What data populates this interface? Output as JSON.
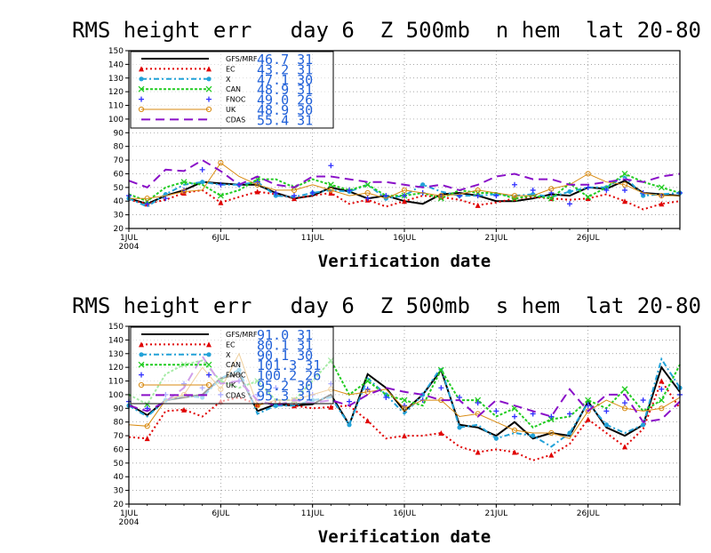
{
  "chart_data": [
    {
      "type": "line",
      "title": "RMS height err   day 6  Z 500mb  n hem  lat 20-80",
      "xlabel": "Verification date",
      "ylabel": "",
      "ylim": [
        20,
        150
      ],
      "y_ticks": [
        20,
        30,
        40,
        50,
        60,
        70,
        80,
        90,
        100,
        110,
        120,
        130,
        140,
        150
      ],
      "x_ticks": [
        {
          "day": 1,
          "label": "1JUL",
          "sub": "2004"
        },
        {
          "day": 6,
          "label": "6JUL",
          "sub": ""
        },
        {
          "day": 11,
          "label": "11JUL",
          "sub": ""
        },
        {
          "day": 16,
          "label": "16JUL",
          "sub": ""
        },
        {
          "day": 21,
          "label": "21JUL",
          "sub": ""
        },
        {
          "day": 26,
          "label": "26JUL",
          "sub": ""
        }
      ],
      "xlim": [
        1,
        31
      ],
      "grid": true,
      "series": [
        {
          "name": "GFS/MRF",
          "legend_value": "46.7 31",
          "color": "#000000",
          "dash": "",
          "width": 2,
          "marker": "none",
          "values": [
            42,
            38,
            44,
            48,
            54,
            53,
            52,
            52,
            46,
            42,
            44,
            50,
            47,
            42,
            44,
            40,
            38,
            45,
            46,
            44,
            40,
            40,
            42,
            45,
            44,
            50,
            49,
            55,
            46,
            45,
            44
          ]
        },
        {
          "name": "EC",
          "legend_value": "43.2 31",
          "color": "#e00000",
          "dash": "2,3",
          "width": 2,
          "marker": "triangle",
          "values": [
            41,
            38,
            41,
            46,
            48,
            39,
            43,
            47,
            45,
            42,
            44,
            46,
            38,
            41,
            36,
            40,
            44,
            43,
            41,
            37,
            39,
            42,
            43,
            42,
            41,
            42,
            45,
            40,
            34,
            38,
            40
          ]
        },
        {
          "name": "X",
          "legend_value": "47.1 30",
          "color": "#22a2d8",
          "dash": "6,3,2,3",
          "width": 2,
          "marker": "circle",
          "values": [
            42,
            36,
            45,
            52,
            54,
            52,
            52,
            54,
            44,
            43,
            46,
            48,
            47,
            52,
            42,
            44,
            52,
            47,
            44,
            44,
            45,
            44,
            45,
            43,
            47,
            50,
            50,
            58,
            44,
            45,
            46
          ]
        },
        {
          "name": "CAN",
          "legend_value": "48.9 31",
          "color": "#22cc22",
          "dash": "3,2",
          "width": 2,
          "marker": "x",
          "values": [
            45,
            40,
            50,
            54,
            52,
            44,
            48,
            56,
            56,
            50,
            56,
            52,
            48,
            52,
            44,
            44,
            46,
            42,
            48,
            46,
            46,
            42,
            44,
            42,
            53,
            43,
            50,
            60,
            54,
            50,
            46
          ]
        },
        {
          "name": "FNOC",
          "legend_value": "49.0 26",
          "color": "#3030ff",
          "dash": "none",
          "width": 2,
          "marker": "plus",
          "values": [
            44,
            38,
            42,
            48,
            63,
            52,
            52,
            54,
            46,
            44,
            46,
            66,
            48,
            42,
            44,
            44,
            46,
            44,
            44,
            44,
            44,
            52,
            48,
            46,
            38,
            50,
            48,
            48,
            46,
            44,
            46
          ]
        },
        {
          "name": "UK",
          "legend_value": "48.9 30",
          "color": "#d88a10",
          "dash": "",
          "width": 1,
          "marker": "ocircle",
          "values": [
            42,
            42,
            44,
            47,
            48,
            68,
            58,
            52,
            48,
            48,
            52,
            48,
            44,
            46,
            42,
            48,
            46,
            44,
            45,
            48,
            46,
            44,
            44,
            49,
            52,
            60,
            54,
            52,
            46,
            44,
            44
          ]
        },
        {
          "name": "CDAS",
          "legend_value": "55.4 31",
          "color": "#8a10c8",
          "dash": "10,6",
          "width": 2,
          "marker": "none",
          "values": [
            55,
            50,
            63,
            62,
            70,
            62,
            52,
            58,
            52,
            50,
            58,
            58,
            56,
            54,
            54,
            52,
            50,
            52,
            48,
            52,
            58,
            60,
            56,
            56,
            52,
            52,
            54,
            56,
            54,
            58,
            60
          ]
        }
      ]
    },
    {
      "type": "line",
      "title": "RMS height err   day 6  Z 500mb  s hem  lat 20-80",
      "xlabel": "Verification date",
      "ylabel": "",
      "ylim": [
        20,
        150
      ],
      "y_ticks": [
        20,
        30,
        40,
        50,
        60,
        70,
        80,
        90,
        100,
        110,
        120,
        130,
        140,
        150
      ],
      "x_ticks": [
        {
          "day": 1,
          "label": "1JUL",
          "sub": "2004"
        },
        {
          "day": 6,
          "label": "6JUL",
          "sub": ""
        },
        {
          "day": 11,
          "label": "11JUL",
          "sub": ""
        },
        {
          "day": 16,
          "label": "16JUL",
          "sub": ""
        },
        {
          "day": 21,
          "label": "21JUL",
          "sub": ""
        },
        {
          "day": 26,
          "label": "26JUL",
          "sub": ""
        }
      ],
      "xlim": [
        1,
        31
      ],
      "grid": true,
      "series": [
        {
          "name": "GFS/MRF",
          "legend_value": "91.0 31",
          "color": "#000000",
          "dash": "",
          "width": 2,
          "marker": "none",
          "values": [
            93,
            85,
            96,
            98,
            100,
            112,
            115,
            88,
            93,
            92,
            93,
            100,
            78,
            115,
            105,
            88,
            100,
            118,
            78,
            76,
            70,
            80,
            68,
            72,
            70,
            95,
            76,
            70,
            78,
            120,
            102
          ]
        },
        {
          "name": "EC",
          "legend_value": "80.1 31",
          "color": "#e00000",
          "dash": "2,3",
          "width": 2,
          "marker": "triangle",
          "values": [
            69,
            68,
            88,
            89,
            84,
            95,
            98,
            93,
            95,
            92,
            90,
            91,
            92,
            81,
            68,
            70,
            70,
            72,
            62,
            58,
            60,
            58,
            52,
            56,
            64,
            82,
            72,
            62,
            75,
            110,
            90
          ]
        },
        {
          "name": "X",
          "legend_value": "90.1 30",
          "color": "#22a2d8",
          "dash": "6,3,2,3",
          "width": 2,
          "marker": "circle",
          "values": [
            92,
            84,
            96,
            99,
            98,
            112,
            118,
            86,
            92,
            92,
            96,
            98,
            78,
            112,
            100,
            86,
            100,
            120,
            76,
            78,
            68,
            72,
            70,
            62,
            72,
            94,
            78,
            72,
            78,
            126,
            105
          ]
        },
        {
          "name": "CAN",
          "legend_value": "101.3 31",
          "color": "#22cc22",
          "dash": "3,2",
          "width": 2,
          "marker": "x",
          "values": [
            100,
            93,
            115,
            122,
            125,
            110,
            105,
            110,
            96,
            96,
            110,
            125,
            100,
            110,
            100,
            96,
            92,
            118,
            96,
            96,
            84,
            90,
            76,
            82,
            84,
            96,
            90,
            104,
            88,
            96,
            122
          ]
        },
        {
          "name": "FNOC",
          "legend_value": "100.2 26",
          "color": "#3030ff",
          "dash": "none",
          "width": 2,
          "marker": "plus",
          "values": [
            95,
            90,
            100,
            108,
            105,
            100,
            110,
            100,
            105,
            96,
            100,
            108,
            95,
            104,
            98,
            92,
            96,
            105,
            98,
            94,
            88,
            84,
            86,
            84,
            86,
            92,
            88,
            94,
            96,
            104,
            100
          ]
        },
        {
          "name": "UK",
          "legend_value": "95.2 30",
          "color": "#d88a10",
          "dash": "",
          "width": 1,
          "marker": "ocircle",
          "values": [
            78,
            77,
            96,
            100,
            120,
            104,
            130,
            92,
            96,
            96,
            100,
            104,
            100,
            102,
            104,
            90,
            96,
            96,
            84,
            86,
            80,
            74,
            72,
            72,
            68,
            88,
            96,
            90,
            88,
            90,
            98
          ]
        },
        {
          "name": "CDAS",
          "legend_value": "95.3 31",
          "color": "#8a10c8",
          "dash": "10,6",
          "width": 2,
          "marker": "none",
          "values": [
            92,
            88,
            95,
            105,
            128,
            108,
            110,
            96,
            92,
            96,
            94,
            96,
            92,
            100,
            105,
            102,
            100,
            96,
            96,
            84,
            96,
            92,
            88,
            84,
            104,
            88,
            100,
            100,
            80,
            82,
            95
          ]
        }
      ]
    }
  ]
}
